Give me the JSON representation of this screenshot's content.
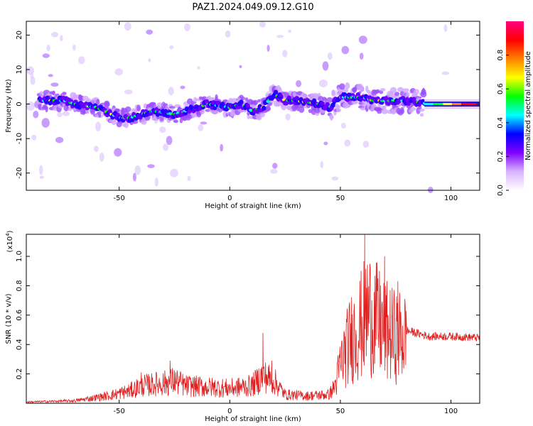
{
  "title": "PAZ1.2024.049.09.12.G10",
  "chart_data": [
    {
      "type": "heatmap",
      "xlabel": "Height of straight line (km)",
      "ylabel": "Frequency (Hz)",
      "xlim": [
        -92,
        113
      ],
      "ylim": [
        -25,
        24
      ],
      "xticks": [
        -50,
        0,
        50,
        100
      ],
      "yticks": [
        -20,
        -10,
        0,
        10,
        20
      ],
      "colorbar": {
        "label": "Normalized spectral amplitude",
        "range": [
          0,
          1
        ],
        "ticks": [
          "0.0",
          "0.2",
          "0.4",
          "0.6",
          "0.8"
        ],
        "colors": [
          "#ffffff",
          "#d9b3ff",
          "#8000ff",
          "#0000ff",
          "#00ffff",
          "#00ff00",
          "#ffff00",
          "#ff8000",
          "#ff0000",
          "#ff0080"
        ]
      },
      "ridge": {
        "description_points_x": [
          -85,
          -75,
          -70,
          -60,
          -50,
          -45,
          -35,
          -25,
          -20,
          -10,
          0,
          5,
          10,
          15,
          20,
          25,
          30,
          40,
          45,
          50,
          55,
          60,
          65,
          70,
          80,
          90,
          100,
          113
        ],
        "description_points_y": [
          1,
          1,
          0,
          -1,
          -4,
          -4,
          -2,
          -3,
          -2,
          0,
          -1,
          0,
          -2,
          -1,
          3,
          1,
          1,
          0,
          -1,
          2,
          2,
          2,
          1,
          1,
          1,
          0,
          0,
          0
        ]
      }
    },
    {
      "type": "line",
      "xlabel": "Height of straight line (km)",
      "ylabel": "SNR (10 * v/v)",
      "exponent_label": "(x10",
      "exponent_power": "4",
      "exponent_close": ")",
      "xlim": [
        -92,
        113
      ],
      "ylim": [
        0,
        1.15
      ],
      "xticks": [
        -50,
        0,
        50,
        100
      ],
      "yticks": [
        "0.2",
        "0.4",
        "0.6",
        "0.8",
        "1.0"
      ],
      "ytick_values": [
        0.2,
        0.4,
        0.6,
        0.8,
        1.0
      ],
      "color": "#e02020",
      "envelope_x": [
        -92,
        -70,
        -55,
        -45,
        -40,
        -30,
        -25,
        -20,
        -10,
        0,
        10,
        15,
        20,
        25,
        35,
        45,
        48,
        50,
        55,
        60,
        62,
        65,
        70,
        75,
        80,
        90,
        100,
        113
      ],
      "envelope_y": [
        0.01,
        0.02,
        0.06,
        0.1,
        0.14,
        0.16,
        0.18,
        0.14,
        0.13,
        0.12,
        0.14,
        0.22,
        0.18,
        0.07,
        0.06,
        0.07,
        0.15,
        0.3,
        0.5,
        0.6,
        0.7,
        0.65,
        0.55,
        0.5,
        0.5,
        0.46,
        0.46,
        0.45
      ],
      "peaks_x": [
        -40,
        -27,
        15,
        19,
        61,
        67,
        70,
        76
      ],
      "peaks_y": [
        0.21,
        0.29,
        0.48,
        0.29,
        1.15,
        0.85,
        1.0,
        0.83
      ]
    }
  ]
}
